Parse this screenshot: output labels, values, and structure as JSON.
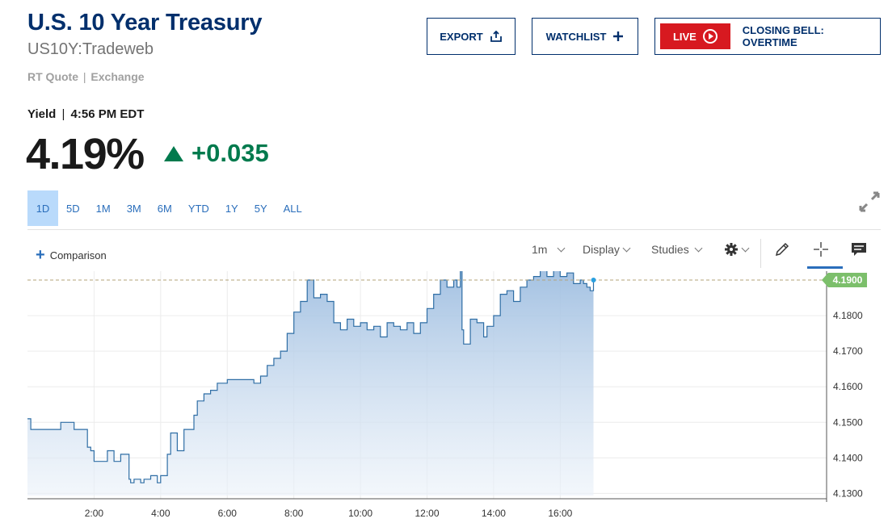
{
  "header": {
    "title": "U.S. 10 Year Treasury",
    "symbol": "US10Y:Tradeweb",
    "quote_type": "RT Quote",
    "quote_source": "Exchange",
    "quote_sep": "|"
  },
  "quote": {
    "label": "Yield",
    "time": "4:56 PM EDT",
    "sep": "|",
    "price": "4.19%",
    "change": "+0.035",
    "direction": "up",
    "up_color": "#007a4d"
  },
  "buttons": {
    "export": "EXPORT",
    "watchlist": "WATCHLIST",
    "live": "LIVE",
    "live_show": "CLOSING BELL: OVERTIME"
  },
  "ranges": [
    "1D",
    "5D",
    "1M",
    "3M",
    "6M",
    "YTD",
    "1Y",
    "5Y",
    "ALL"
  ],
  "active_range": "1D",
  "toolbar": {
    "comparison": "Comparison",
    "interval": "1m",
    "display": "Display",
    "studies": "Studies"
  },
  "colors": {
    "brand": "#002f6c",
    "accent": "#2a6ebb",
    "live": "#d71920",
    "line": "#2f6ea5",
    "last_price_tag": "#7cbf6b"
  },
  "chart_data": {
    "type": "area",
    "x_ticks": [
      "2:00",
      "4:00",
      "6:00",
      "8:00",
      "10:00",
      "12:00",
      "14:00",
      "16:00"
    ],
    "x_tick_hours": [
      2,
      4,
      6,
      8,
      10,
      12,
      14,
      16
    ],
    "x_range_hours": [
      0,
      24
    ],
    "y_ticks": [
      "4.1300",
      "4.1400",
      "4.1500",
      "4.1600",
      "4.1700",
      "4.1800"
    ],
    "y_tick_values": [
      4.13,
      4.14,
      4.15,
      4.16,
      4.17,
      4.18
    ],
    "ylim": [
      4.1285,
      4.1925
    ],
    "last_value": 4.19,
    "last_label": "4.1900",
    "grid": true,
    "series": [
      {
        "x": [
          0,
          0.1,
          0.5,
          1.0,
          1.4,
          1.8,
          1.9,
          2.0,
          2.2,
          2.4,
          2.6,
          2.8,
          3.0,
          3.05,
          3.1,
          3.2,
          3.4,
          3.5,
          3.7,
          3.9,
          4.0,
          4.2,
          4.3,
          4.5,
          4.7,
          5.0,
          5.1,
          5.3,
          5.5,
          5.7,
          6.0,
          6.2,
          6.5,
          6.8,
          7.0,
          7.2,
          7.4,
          7.6,
          7.8,
          8.0,
          8.2,
          8.4,
          8.6,
          8.8,
          9.0,
          9.2,
          9.4,
          9.6,
          9.8,
          10.0,
          10.2,
          10.4,
          10.6,
          10.8,
          11.0,
          11.2,
          11.4,
          11.6,
          11.8,
          12.0,
          12.2,
          12.4,
          12.6,
          12.8,
          12.9,
          13.0,
          13.05,
          13.1,
          13.3,
          13.5,
          13.7,
          13.8,
          14.0,
          14.2,
          14.4,
          14.6,
          14.8,
          15.0,
          15.2,
          15.4,
          15.6,
          15.8,
          16.0,
          16.2,
          16.4,
          16.6,
          16.7,
          16.8,
          16.9,
          17.0
        ],
        "y": [
          4.151,
          4.148,
          4.148,
          4.15,
          4.148,
          4.143,
          4.142,
          4.139,
          4.139,
          4.142,
          4.139,
          4.141,
          4.141,
          4.134,
          4.133,
          4.134,
          4.133,
          4.134,
          4.135,
          4.133,
          4.135,
          4.141,
          4.147,
          4.142,
          4.148,
          4.152,
          4.156,
          4.158,
          4.159,
          4.161,
          4.162,
          4.162,
          4.162,
          4.161,
          4.163,
          4.166,
          4.168,
          4.17,
          4.175,
          4.181,
          4.184,
          4.19,
          4.185,
          4.186,
          4.184,
          4.178,
          4.176,
          4.179,
          4.177,
          4.178,
          4.176,
          4.177,
          4.174,
          4.178,
          4.177,
          4.176,
          4.178,
          4.175,
          4.178,
          4.182,
          4.186,
          4.19,
          4.188,
          4.19,
          4.188,
          4.193,
          4.176,
          4.172,
          4.179,
          4.178,
          4.174,
          4.177,
          4.18,
          4.186,
          4.187,
          4.184,
          4.188,
          4.19,
          4.191,
          4.194,
          4.191,
          4.193,
          4.191,
          4.192,
          4.189,
          4.19,
          4.189,
          4.188,
          4.187,
          4.19
        ]
      }
    ]
  }
}
